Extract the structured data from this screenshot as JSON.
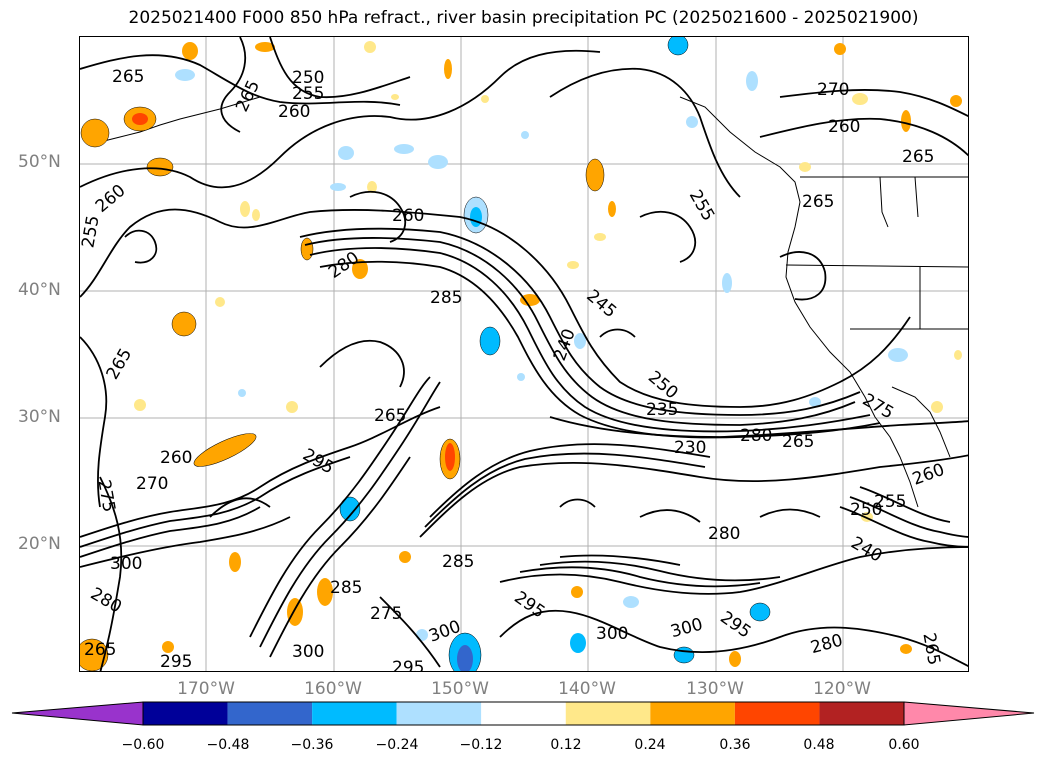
{
  "title": "2025021400 F000 850 hPa refract., river basin precipitation PC (2025021600 - 2025021900)",
  "latitude_labels": [
    "50°N",
    "40°N",
    "30°N",
    "20°N"
  ],
  "longitude_labels": [
    "170°W",
    "160°W",
    "150°W",
    "140°W",
    "130°W",
    "120°W"
  ],
  "colorbar": {
    "ticks": [
      "−0.60",
      "−0.48",
      "−0.36",
      "−0.24",
      "−0.12",
      "0.12",
      "0.24",
      "0.36",
      "0.48",
      "0.60"
    ],
    "colors": [
      "#9933cc",
      "#000099",
      "#3366cc",
      "#00bbff",
      "#aee0ff",
      "#ffffff",
      "#ffe88a",
      "#ffa500",
      "#ff4500",
      "#b22222",
      "#ff88aa"
    ]
  },
  "contour_labels": [
    "265",
    "265",
    "250",
    "255",
    "260",
    "270",
    "260",
    "265",
    "260",
    "255",
    "260",
    "255",
    "265",
    "280",
    "285",
    "245",
    "240",
    "265",
    "250",
    "235",
    "280",
    "230",
    "265",
    "275",
    "260",
    "295",
    "270",
    "275",
    "260",
    "265",
    "300",
    "255",
    "250",
    "240",
    "280",
    "280",
    "285",
    "275",
    "285",
    "300",
    "295",
    "300",
    "295",
    "300",
    "295",
    "280",
    "265",
    "265",
    "295",
    "300"
  ]
}
